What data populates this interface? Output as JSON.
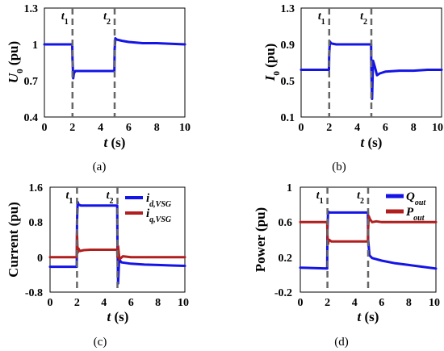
{
  "chart_data": [
    {
      "id": "a",
      "type": "line",
      "caption": "(a)",
      "xlabel": "t (s)",
      "ylabel": "U0 (pu)",
      "xlim": [
        0,
        10
      ],
      "ylim": [
        0.4,
        1.3
      ],
      "xticks": [
        "0",
        "2",
        "4",
        "6",
        "8",
        "10"
      ],
      "yticks": [
        "0.4",
        "0.7",
        "1",
        "1.3"
      ],
      "markers": [
        {
          "x": 2,
          "label": "t1"
        },
        {
          "x": 5,
          "label": "t2"
        }
      ],
      "series": [
        {
          "color": "#1414e6",
          "x": [
            0,
            1.98,
            2.0,
            2.05,
            2.1,
            2.2,
            2.4,
            3,
            4,
            4.98,
            5.0,
            5.05,
            5.15,
            5.5,
            6,
            7,
            8,
            9,
            10
          ],
          "y": [
            1.0,
            1.0,
            0.88,
            0.72,
            0.76,
            0.78,
            0.78,
            0.78,
            0.78,
            0.78,
            0.96,
            1.05,
            1.04,
            1.03,
            1.02,
            1.01,
            1.01,
            1.005,
            1.0
          ]
        }
      ]
    },
    {
      "id": "b",
      "type": "line",
      "caption": "(b)",
      "xlabel": "t (s)",
      "ylabel": "I0 (pu)",
      "xlim": [
        0,
        10
      ],
      "ylim": [
        0.1,
        1.3
      ],
      "xticks": [
        "0",
        "2",
        "4",
        "6",
        "8",
        "10"
      ],
      "yticks": [
        "0.1",
        "0.5",
        "0.9",
        "1.3"
      ],
      "markers": [
        {
          "x": 2,
          "label": "t1"
        },
        {
          "x": 5,
          "label": "t2"
        }
      ],
      "series": [
        {
          "color": "#1414e6",
          "x": [
            0,
            1.98,
            2.0,
            2.05,
            2.15,
            2.5,
            3,
            4,
            4.98,
            5.0,
            5.05,
            5.12,
            5.25,
            5.4,
            5.6,
            6,
            7,
            8,
            9,
            10
          ],
          "y": [
            0.62,
            0.62,
            0.8,
            0.93,
            0.91,
            0.9,
            0.9,
            0.9,
            0.9,
            0.6,
            0.3,
            0.72,
            0.65,
            0.56,
            0.58,
            0.6,
            0.61,
            0.61,
            0.62,
            0.62
          ]
        }
      ]
    },
    {
      "id": "c",
      "type": "line",
      "caption": "(c)",
      "xlabel": "t (s)",
      "ylabel": "Current (pu)",
      "xlim": [
        0,
        10
      ],
      "ylim": [
        -0.8,
        1.6
      ],
      "xticks": [
        "0",
        "2",
        "4",
        "6",
        "8",
        "10"
      ],
      "yticks": [
        "-0.8",
        "0",
        "0.8",
        "1.6"
      ],
      "legend_position": "top-right",
      "markers": [
        {
          "x": 2,
          "label": "t1"
        },
        {
          "x": 5,
          "label": "t2"
        }
      ],
      "series": [
        {
          "name": "i",
          "sub": "d,VSG",
          "color": "#1414e6",
          "x": [
            0,
            1.98,
            2.0,
            2.05,
            2.12,
            2.3,
            3,
            4,
            4.98,
            5.0,
            5.05,
            5.12,
            5.3,
            6,
            7,
            8,
            9,
            10
          ],
          "y": [
            -0.22,
            -0.22,
            0.8,
            1.26,
            1.2,
            1.18,
            1.18,
            1.18,
            1.18,
            0.3,
            -0.6,
            -0.05,
            -0.12,
            -0.15,
            -0.17,
            -0.18,
            -0.19,
            -0.2
          ]
        },
        {
          "name": "i",
          "sub": "q,VSG",
          "color": "#b01e1e",
          "x": [
            0,
            1.98,
            2.0,
            2.05,
            2.1,
            2.2,
            2.5,
            3,
            4,
            4.98,
            5.0,
            5.05,
            5.15,
            5.4,
            6,
            7,
            8,
            9,
            10
          ],
          "y": [
            0.0,
            0.0,
            0.55,
            0.1,
            0.2,
            0.14,
            0.16,
            0.17,
            0.17,
            0.17,
            0.0,
            0.25,
            -0.05,
            0.02,
            0.0,
            0.0,
            0.0,
            0.0,
            0.0
          ]
        }
      ]
    },
    {
      "id": "d",
      "type": "line",
      "caption": "(d)",
      "xlabel": "t (s)",
      "ylabel": "Power (pu)",
      "xlim": [
        0,
        10
      ],
      "ylim": [
        -0.2,
        1.0
      ],
      "xticks": [
        "0",
        "2",
        "4",
        "6",
        "8",
        "10"
      ],
      "yticks": [
        "-0.2",
        "0.2",
        "0.6",
        "1"
      ],
      "legend_position": "top-right",
      "markers": [
        {
          "x": 2,
          "label": "t1"
        },
        {
          "x": 5,
          "label": "t2"
        }
      ],
      "series": [
        {
          "name": "Q",
          "sub": "out",
          "color": "#1414e6",
          "x": [
            0,
            1.98,
            2.0,
            2.05,
            2.15,
            3,
            4,
            4.98,
            5.0,
            5.1,
            5.3,
            6,
            7,
            8,
            9,
            10
          ],
          "y": [
            0.08,
            0.07,
            0.5,
            0.72,
            0.71,
            0.71,
            0.71,
            0.71,
            0.4,
            0.22,
            0.19,
            0.16,
            0.13,
            0.11,
            0.09,
            0.07
          ]
        },
        {
          "name": "P",
          "sub": "out",
          "color": "#b01e1e",
          "x": [
            0,
            1.98,
            2.0,
            2.05,
            2.1,
            2.3,
            3,
            4,
            4.98,
            5.0,
            5.05,
            5.15,
            5.3,
            5.6,
            6,
            7,
            8,
            9,
            10
          ],
          "y": [
            0.6,
            0.6,
            0.45,
            0.35,
            0.4,
            0.38,
            0.38,
            0.38,
            0.38,
            0.52,
            0.67,
            0.63,
            0.6,
            0.61,
            0.6,
            0.6,
            0.6,
            0.6,
            0.6
          ]
        }
      ]
    }
  ]
}
